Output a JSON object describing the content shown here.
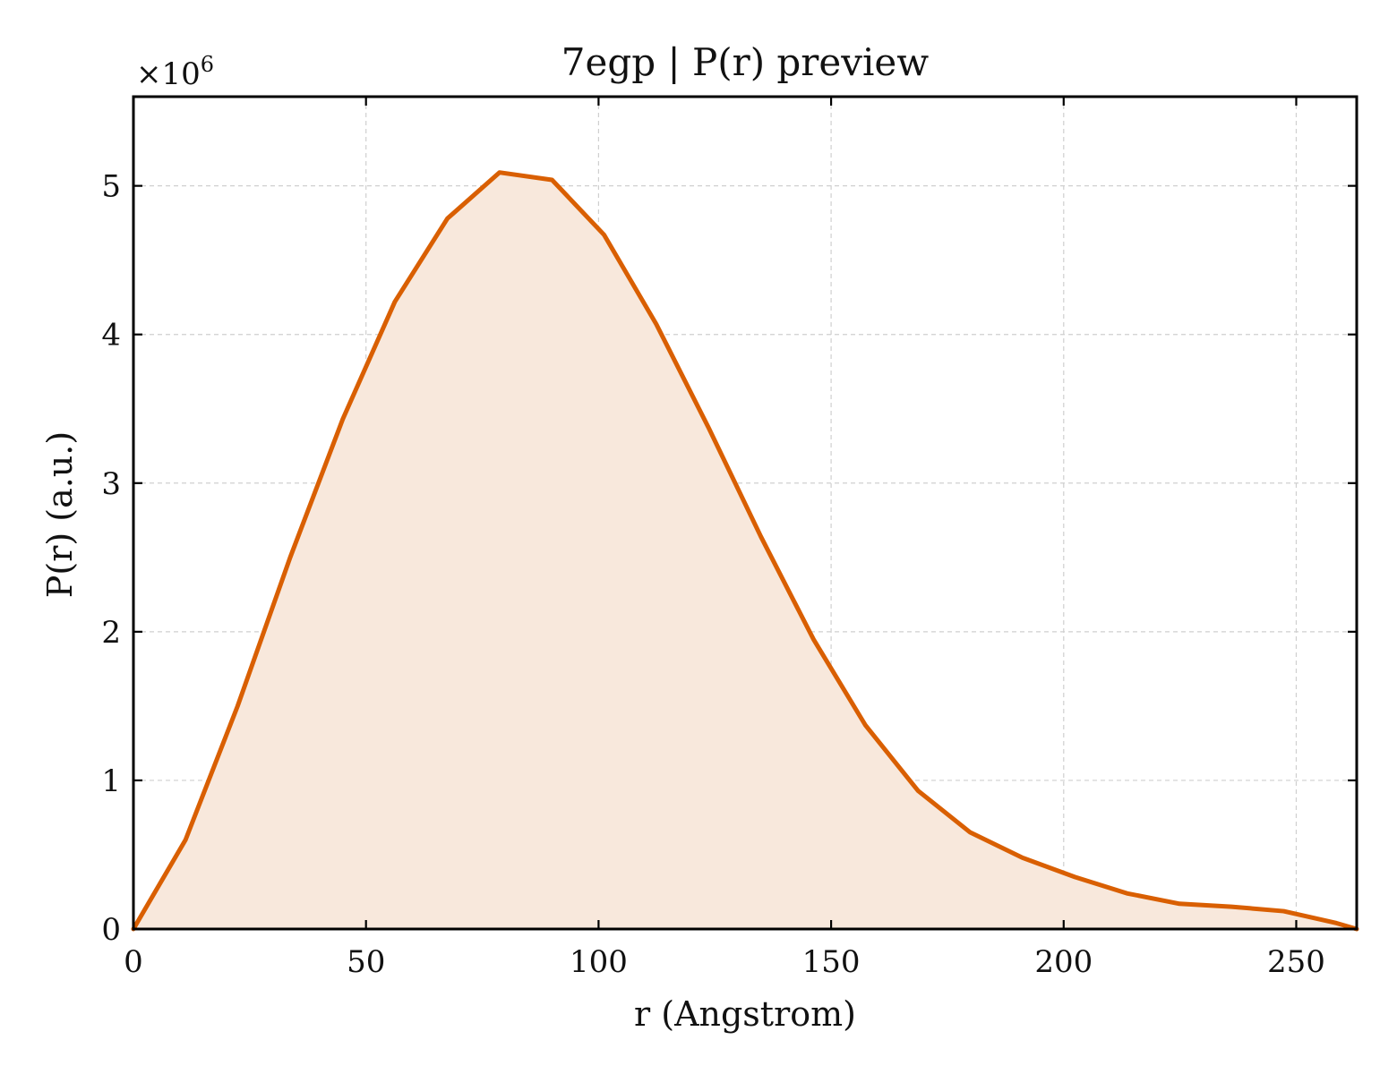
{
  "chart_data": {
    "type": "area",
    "title": "7egp | P(r) preview",
    "xlabel": "r (Angstrom)",
    "ylabel": "P(r) (a.u.)",
    "y_multiplier_base": "×10",
    "y_multiplier_exp": "6",
    "xlim": [
      0,
      263
    ],
    "ylim": [
      0,
      5.6
    ],
    "y_scale": 1000000,
    "grid": true,
    "x_ticks": [
      0,
      50,
      100,
      150,
      200,
      250
    ],
    "y_ticks": [
      0,
      1,
      2,
      3,
      4,
      5
    ],
    "series": [
      {
        "color": "#d95f02",
        "fill_color": "#f8e8dc",
        "x": [
          0,
          11.2,
          22.4,
          33.7,
          45,
          56.2,
          67.5,
          78.7,
          90,
          101.2,
          112.4,
          123.7,
          134.9,
          146.2,
          157.4,
          168.7,
          179.9,
          191.1,
          202.4,
          213.6,
          224.9,
          236.1,
          247.3,
          258.6,
          263
        ],
        "y": [
          0,
          0.6,
          1.5,
          2.5,
          3.43,
          4.22,
          4.78,
          5.09,
          5.04,
          4.67,
          4.07,
          3.37,
          2.64,
          1.95,
          1.37,
          0.93,
          0.65,
          0.48,
          0.35,
          0.24,
          0.17,
          0.15,
          0.12,
          0.04,
          0
        ]
      }
    ]
  }
}
